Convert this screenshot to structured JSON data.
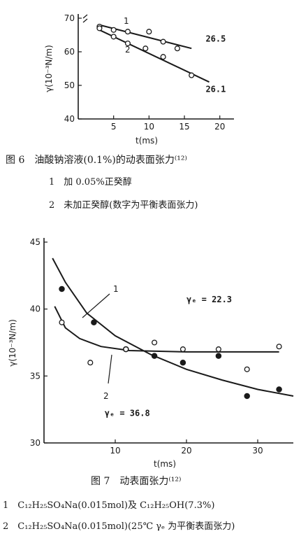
{
  "chart_data": [
    {
      "type": "scatter",
      "xlabel": "t(ms)",
      "ylabel": "γ(10⁻³N/m)",
      "xlim": [
        0,
        22
      ],
      "ylim": [
        40,
        70
      ],
      "xticks": [
        "5",
        "10",
        "15",
        "20"
      ],
      "yticks": [
        "40",
        "50",
        "60",
        "70"
      ],
      "grid": false,
      "series": [
        {
          "name": "1",
          "points": [
            [
              3,
              67.5
            ],
            [
              5,
              66.5
            ],
            [
              7,
              66
            ],
            [
              10,
              66
            ],
            [
              12,
              63
            ],
            [
              14,
              61
            ]
          ],
          "fit": [
            [
              3,
              68
            ],
            [
              16,
              61
            ]
          ]
        },
        {
          "name": "2",
          "points": [
            [
              3,
              67
            ],
            [
              5,
              64.5
            ],
            [
              7,
              62.5
            ],
            [
              9.5,
              61
            ],
            [
              12,
              58.5
            ],
            [
              16,
              53
            ]
          ],
          "fit": [
            [
              3,
              66.5
            ],
            [
              18.5,
              51
            ]
          ]
        }
      ],
      "annotations": [
        {
          "text": "26.5",
          "x": 18,
          "y": 63
        },
        {
          "text": "26.1",
          "x": 18,
          "y": 48
        }
      ]
    },
    {
      "type": "scatter",
      "xlabel": "t(ms)",
      "ylabel": "γ(10⁻³N/m)",
      "xlim": [
        0,
        35
      ],
      "ylim": [
        30,
        45
      ],
      "xticks": [
        "10",
        "20",
        "30"
      ],
      "yticks": [
        "30",
        "35",
        "40",
        "45"
      ],
      "grid": false,
      "series": [
        {
          "name": "1",
          "marker": "filled",
          "points": [
            [
              2.5,
              41.5
            ],
            [
              7,
              39
            ],
            [
              11.5,
              37
            ],
            [
              15.5,
              36.5
            ],
            [
              19.5,
              36
            ],
            [
              24.5,
              36.5
            ],
            [
              28.5,
              33.5
            ],
            [
              33,
              34
            ]
          ],
          "curve": [
            [
              1.2,
              43.8
            ],
            [
              3,
              42
            ],
            [
              6,
              39.7
            ],
            [
              10,
              38
            ],
            [
              15,
              36.6
            ],
            [
              20,
              35.5
            ],
            [
              25,
              34.7
            ],
            [
              30,
              34
            ],
            [
              35,
              33.5
            ]
          ]
        },
        {
          "name": "2",
          "marker": "open",
          "points": [
            [
              2.5,
              39
            ],
            [
              6.5,
              36
            ],
            [
              11.5,
              37
            ],
            [
              15.5,
              37.5
            ],
            [
              19.5,
              37
            ],
            [
              24.5,
              37
            ],
            [
              28.5,
              35.5
            ],
            [
              33,
              37.2
            ]
          ],
          "curve": [
            [
              1.5,
              40.2
            ],
            [
              3,
              38.6
            ],
            [
              5,
              37.8
            ],
            [
              8,
              37.2
            ],
            [
              12,
              36.9
            ],
            [
              20,
              36.8
            ],
            [
              33,
              36.8
            ]
          ]
        }
      ],
      "annotations": [
        {
          "text": "γₑ = 22.3",
          "x": 20,
          "y": 40.5
        },
        {
          "text": "γₑ = 36.8",
          "x": 8.5,
          "y": 32
        }
      ]
    }
  ],
  "fig6": {
    "caption": "图 6　油酸钠溶液(0.1%)的动表面张力⁽¹²⁾",
    "note1": "1　加 0.05%正癸醇",
    "note2": "2　未加正癸醇(数字为平衡表面张力)"
  },
  "fig7": {
    "caption": "图 7　动表面张力⁽¹²⁾",
    "note1": "1　C₁₂H₂₅SO₄Na(0.015mol)及 C₁₂H₂₅OH(7.3%)",
    "note2": "2　C₁₂H₂₅SO₄Na(0.015mol)(25℃ γₑ 为平衡表面张力)"
  }
}
